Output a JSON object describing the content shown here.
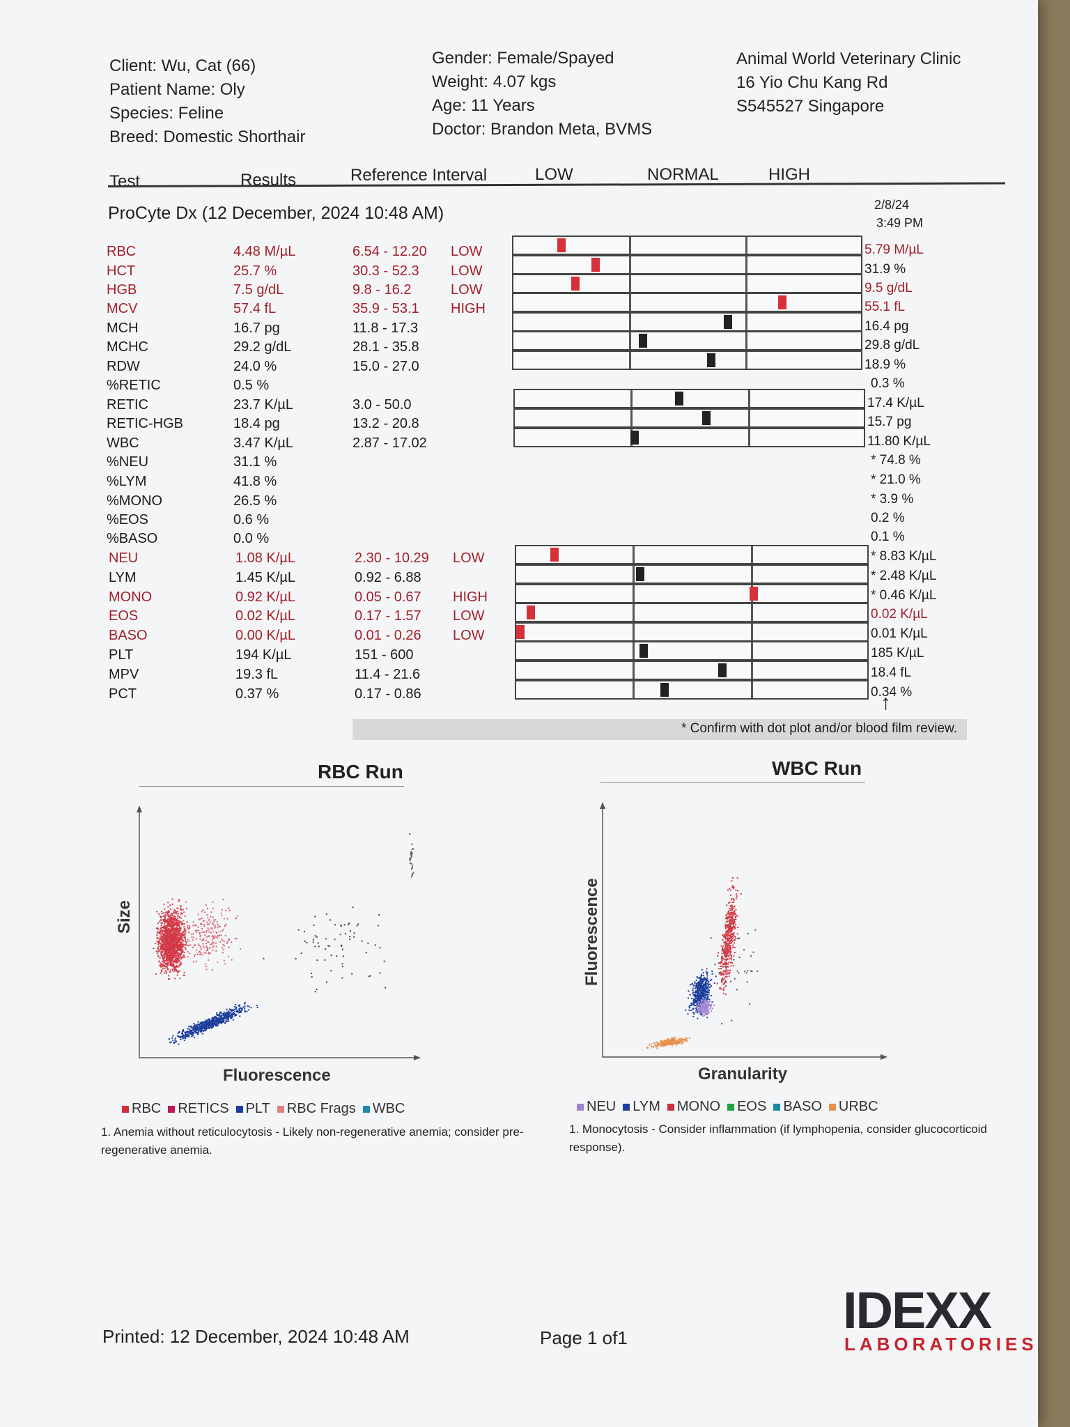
{
  "header": {
    "client": "Client: Wu, Cat (66)",
    "patient": "Patient Name: Oly",
    "species": "Species: Feline",
    "breed": "Breed: Domestic Shorthair",
    "gender": "Gender: Female/Spayed",
    "weight": "Weight: 4.07 kgs",
    "age": "Age: 11 Years",
    "doctor": "Doctor: Brandon Meta, BVMS",
    "clinic": "Animal World Veterinary Clinic",
    "address1": "16 Yio Chu Kang Rd",
    "address2": "S545527 Singapore"
  },
  "columns": {
    "test": "Test",
    "results": "Results",
    "reference": "Reference Interval",
    "low": "LOW",
    "normal": "NORMAL",
    "high": "HIGH"
  },
  "run": {
    "title": "ProCyte Dx (12 December, 2024 10:48 AM)",
    "prev_date": "2/8/24",
    "prev_time": "3:49 PM"
  },
  "rows": [
    {
      "test": "RBC",
      "result": "4.48 M/µL",
      "ref": "6.54 - 12.20",
      "flag": "LOW",
      "prev": "5.79 M/µL",
      "abnormal": true,
      "prev_abnormal": true,
      "marker": 0.13
    },
    {
      "test": "HCT",
      "result": "25.7 %",
      "ref": "30.3 - 52.3",
      "flag": "LOW",
      "prev": "31.9 %",
      "abnormal": true,
      "prev_abnormal": false,
      "marker": 0.23
    },
    {
      "test": "HGB",
      "result": "7.5 g/dL",
      "ref": "9.8 - 16.2",
      "flag": "LOW",
      "prev": "9.5 g/dL",
      "abnormal": true,
      "prev_abnormal": true,
      "marker": 0.17
    },
    {
      "test": "MCV",
      "result": "57.4 fL",
      "ref": "35.9 - 53.1",
      "flag": "HIGH",
      "prev": "55.1 fL",
      "abnormal": true,
      "prev_abnormal": true,
      "marker": 0.78
    },
    {
      "test": "MCH",
      "result": "16.7 pg",
      "ref": "11.8 - 17.3",
      "flag": "",
      "prev": "16.4 pg",
      "abnormal": false,
      "prev_abnormal": false,
      "marker": 0.62
    },
    {
      "test": "MCHC",
      "result": "29.2 g/dL",
      "ref": "28.1 - 35.8",
      "flag": "",
      "prev": "29.8 g/dL",
      "abnormal": false,
      "prev_abnormal": false,
      "marker": 0.37
    },
    {
      "test": "RDW",
      "result": "24.0 %",
      "ref": "15.0 - 27.0",
      "flag": "",
      "prev": "18.9 %",
      "abnormal": false,
      "prev_abnormal": false,
      "marker": 0.57
    },
    {
      "test": "%RETIC",
      "result": "0.5 %",
      "ref": "",
      "flag": "",
      "prev": "0.3 %",
      "abnormal": false,
      "prev_abnormal": false,
      "marker": null
    },
    {
      "test": "RETIC",
      "result": "23.7 K/µL",
      "ref": "3.0 - 50.0",
      "flag": "",
      "prev": "17.4 K/µL",
      "abnormal": false,
      "prev_abnormal": false,
      "marker": 0.47
    },
    {
      "test": "RETIC-HGB",
      "result": "18.4 pg",
      "ref": "13.2 - 20.8",
      "flag": "",
      "prev": "15.7 pg",
      "abnormal": false,
      "prev_abnormal": false,
      "marker": 0.55
    },
    {
      "test": "WBC",
      "result": "3.47 K/µL",
      "ref": "2.87 - 17.02",
      "flag": "",
      "prev": "11.80 K/µL",
      "abnormal": false,
      "prev_abnormal": false,
      "marker": 0.34
    },
    {
      "test": "%NEU",
      "result": "31.1 %",
      "ref": "",
      "flag": "",
      "prev": "* 74.8 %",
      "abnormal": false,
      "prev_abnormal": false,
      "marker": null
    },
    {
      "test": "%LYM",
      "result": "41.8 %",
      "ref": "",
      "flag": "",
      "prev": "* 21.0 %",
      "abnormal": false,
      "prev_abnormal": false,
      "marker": null
    },
    {
      "test": "%MONO",
      "result": "26.5 %",
      "ref": "",
      "flag": "",
      "prev": "* 3.9 %",
      "abnormal": false,
      "prev_abnormal": false,
      "marker": null
    },
    {
      "test": "%EOS",
      "result": "0.6 %",
      "ref": "",
      "flag": "",
      "prev": "0.2 %",
      "abnormal": false,
      "prev_abnormal": false,
      "marker": null
    },
    {
      "test": "%BASO",
      "result": "0.0 %",
      "ref": "",
      "flag": "",
      "prev": "0.1 %",
      "abnormal": false,
      "prev_abnormal": false,
      "marker": null
    },
    {
      "test": "NEU",
      "result": "1.08 K/µL",
      "ref": "2.30 - 10.29",
      "flag": "LOW",
      "prev": "* 8.83 K/µL",
      "abnormal": true,
      "prev_abnormal": false,
      "marker": 0.1
    },
    {
      "test": "LYM",
      "result": "1.45 K/µL",
      "ref": "0.92 - 6.88",
      "flag": "",
      "prev": "* 2.48 K/µL",
      "abnormal": false,
      "prev_abnormal": false,
      "marker": 0.35
    },
    {
      "test": "MONO",
      "result": "0.92 K/µL",
      "ref": "0.05 - 0.67",
      "flag": "HIGH",
      "prev": "* 0.46 K/µL",
      "abnormal": true,
      "prev_abnormal": false,
      "marker": 0.68
    },
    {
      "test": "EOS",
      "result": "0.02 K/µL",
      "ref": "0.17 - 1.57",
      "flag": "LOW",
      "prev": "0.02 K/µL",
      "abnormal": true,
      "prev_abnormal": true,
      "marker": 0.03
    },
    {
      "test": "BASO",
      "result": "0.00 K/µL",
      "ref": "0.01 - 0.26",
      "flag": "LOW",
      "prev": "0.01 K/µL",
      "abnormal": true,
      "prev_abnormal": false,
      "marker": 0.0
    },
    {
      "test": "PLT",
      "result": "194 K/µL",
      "ref": "151 - 600",
      "flag": "",
      "prev": "185 K/µL",
      "abnormal": false,
      "prev_abnormal": false,
      "marker": 0.36
    },
    {
      "test": "MPV",
      "result": "19.3 fL",
      "ref": "11.4 - 21.6",
      "flag": "",
      "prev": "18.4 fL",
      "abnormal": false,
      "prev_abnormal": false,
      "marker": 0.59
    },
    {
      "test": "PCT",
      "result": "0.37 %",
      "ref": "0.17 - 0.86",
      "flag": "",
      "prev": "0.34 %",
      "abnormal": false,
      "prev_abnormal": false,
      "marker": 0.42
    }
  ],
  "confirm_note": "* Confirm with dot plot and/or blood film review.",
  "rbc_plot": {
    "title": "RBC Run",
    "xlabel": "Fluorescence",
    "ylabel": "Size",
    "legend": [
      {
        "label": "RBC",
        "color": "#d0303c"
      },
      {
        "label": "RETICS",
        "color": "#c0185a"
      },
      {
        "label": "PLT",
        "color": "#1a3fa0"
      },
      {
        "label": "RBC Frags",
        "color": "#e08080"
      },
      {
        "label": "WBC",
        "color": "#1a8aa8"
      }
    ],
    "footnote": "1. Anemia without reticulocytosis - Likely non-regenerative anemia; consider pre-regenerative anemia."
  },
  "wbc_plot": {
    "title": "WBC Run",
    "xlabel": "Granularity",
    "ylabel": "Fluorescence",
    "legend": [
      {
        "label": "NEU",
        "color": "#a080d0"
      },
      {
        "label": "LYM",
        "color": "#1a3fa0"
      },
      {
        "label": "MONO",
        "color": "#d0303c"
      },
      {
        "label": "EOS",
        "color": "#20a040"
      },
      {
        "label": "BASO",
        "color": "#1a8aa8"
      },
      {
        "label": "URBC",
        "color": "#e8904a"
      }
    ],
    "footnote": "1. Monocytosis - Consider inflammation (if lymphopenia, consider glucocorticoid response)."
  },
  "footer": {
    "printed": "Printed: 12 December, 2024 10:48 AM",
    "page": "Page 1 of1",
    "logo_main": "IDEXX",
    "logo_sub": "LABORATORIES"
  },
  "colors": {
    "abnormal": "#a3202a",
    "marker_normal": "#222222",
    "marker_abnormal": "#d63038"
  }
}
